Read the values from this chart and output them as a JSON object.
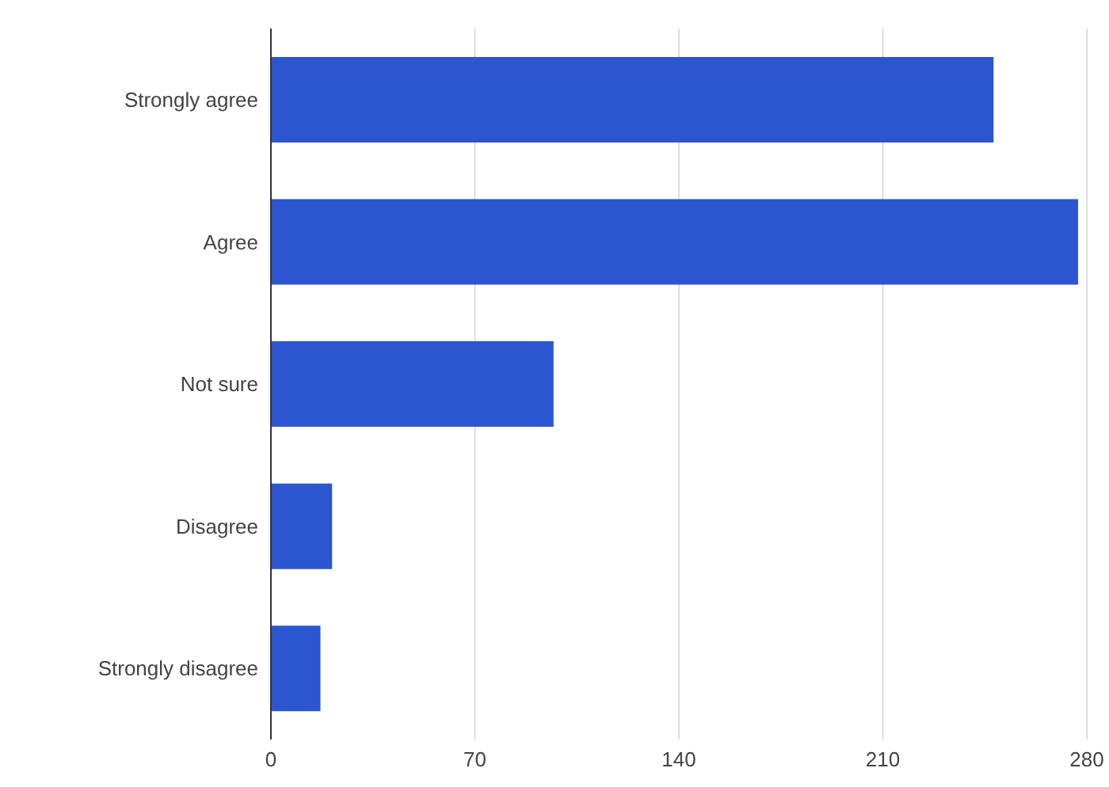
{
  "chart_data": {
    "type": "bar",
    "orientation": "horizontal",
    "categories": [
      "Strongly agree",
      "Agree",
      "Not sure",
      "Disagree",
      "Strongly disagree"
    ],
    "values": [
      248,
      277,
      97,
      21,
      17
    ],
    "color": "#2c56d0",
    "xlim": [
      0,
      280
    ],
    "xticks": [
      0,
      70,
      140,
      210,
      280
    ],
    "grid": "x"
  }
}
